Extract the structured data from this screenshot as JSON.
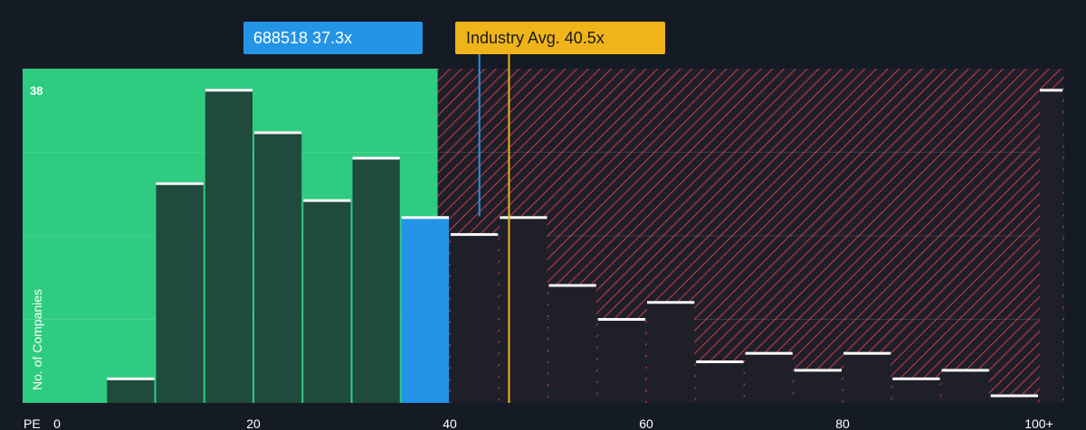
{
  "chart_data": {
    "type": "bar",
    "xlabel": "PE",
    "ylabel": "No. of Companies",
    "ymax_label": "38",
    "ylim": [
      0,
      38
    ],
    "xlim": [
      0,
      102
    ],
    "x_ticks": [
      {
        "value": 0,
        "label": "0"
      },
      {
        "value": 20,
        "label": "20"
      },
      {
        "value": 40,
        "label": "40"
      },
      {
        "value": 60,
        "label": "60"
      },
      {
        "value": 80,
        "label": "80"
      },
      {
        "value": 100,
        "label": "100+"
      }
    ],
    "bins": [
      {
        "x0": 0,
        "x1": 5,
        "value": 0
      },
      {
        "x0": 5,
        "x1": 10,
        "value": 3
      },
      {
        "x0": 10,
        "x1": 15,
        "value": 26
      },
      {
        "x0": 15,
        "x1": 20,
        "value": 37
      },
      {
        "x0": 20,
        "x1": 25,
        "value": 32
      },
      {
        "x0": 25,
        "x1": 30,
        "value": 24
      },
      {
        "x0": 30,
        "x1": 35,
        "value": 29
      },
      {
        "x0": 35,
        "x1": 40,
        "value": 22
      },
      {
        "x0": 40,
        "x1": 45,
        "value": 20
      },
      {
        "x0": 45,
        "x1": 50,
        "value": 22
      },
      {
        "x0": 50,
        "x1": 55,
        "value": 14
      },
      {
        "x0": 55,
        "x1": 60,
        "value": 10
      },
      {
        "x0": 60,
        "x1": 65,
        "value": 12
      },
      {
        "x0": 65,
        "x1": 70,
        "value": 5
      },
      {
        "x0": 70,
        "x1": 75,
        "value": 6
      },
      {
        "x0": 75,
        "x1": 80,
        "value": 4
      },
      {
        "x0": 80,
        "x1": 85,
        "value": 6
      },
      {
        "x0": 85,
        "x1": 90,
        "value": 3
      },
      {
        "x0": 90,
        "x1": 95,
        "value": 4
      },
      {
        "x0": 95,
        "x1": 100,
        "value": 1
      },
      {
        "x0": 100,
        "x1": 102.5,
        "value": 37
      }
    ],
    "company": {
      "value": 37.3,
      "label": "688518 37.3x"
    },
    "industry_avg": {
      "value": 40.5,
      "label": "Industry Avg. 40.5x"
    },
    "grid": true
  },
  "colors": {
    "background": "#151b24",
    "good_zone": "#2ecc80",
    "good_bar": "#1f4a3c",
    "bad_bar": "#1e1f29",
    "bad_hatch": "#c0394a",
    "company_bar": "#2394e6",
    "company_callout": "#2394e6",
    "industry_line": "#f0b41b",
    "industry_callout": "#f0b41b",
    "bar_cap": "#ffffff"
  }
}
